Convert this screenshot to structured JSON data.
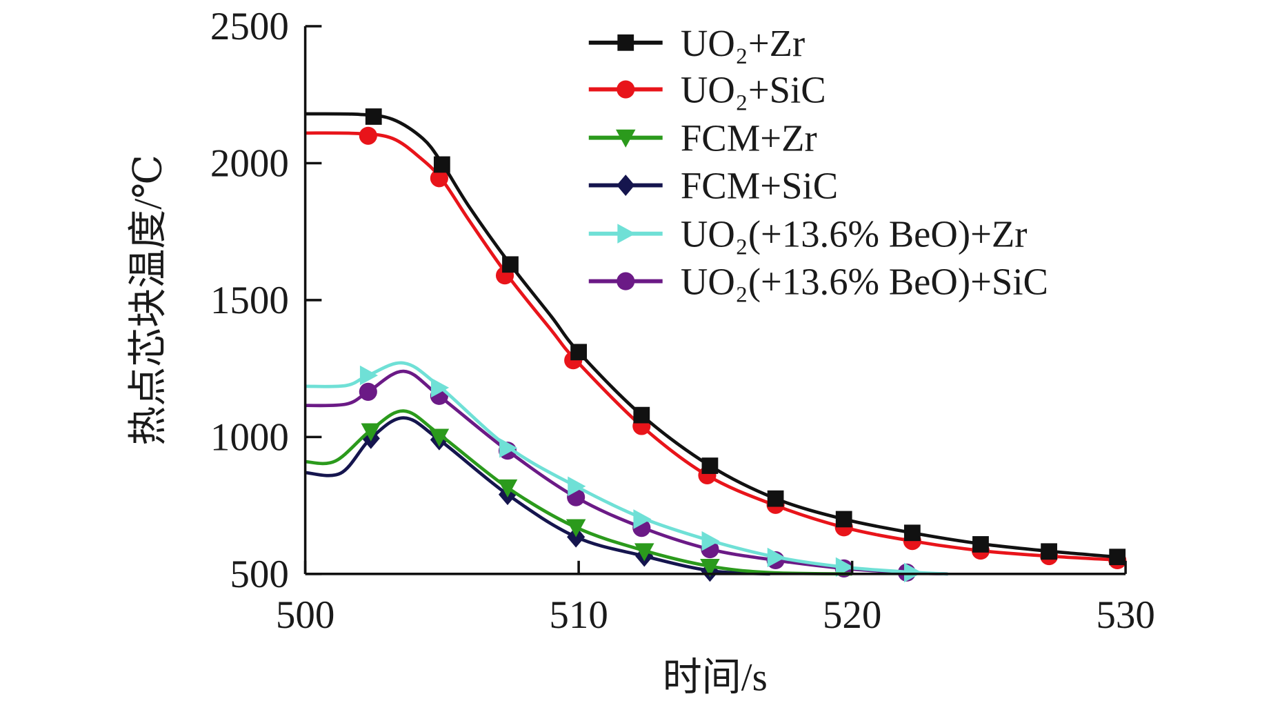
{
  "chart_data": {
    "type": "line",
    "title": "",
    "xlabel": "时间/s",
    "ylabel": "热点芯块温度/℃",
    "xlim": [
      500,
      530
    ],
    "ylim": [
      500,
      2500
    ],
    "xticks": [
      500,
      510,
      520,
      530
    ],
    "yticks": [
      500,
      1000,
      1500,
      2000,
      2500
    ],
    "grid": false,
    "legend_position": "top-right",
    "series": [
      {
        "name": "UO₂+Zr",
        "color": "#111111",
        "marker": "square",
        "points": [
          [
            500,
            2180
          ],
          [
            502,
            2178
          ],
          [
            503.2,
            2160
          ],
          [
            504.3,
            2090
          ],
          [
            505,
            2000
          ],
          [
            506,
            1840
          ],
          [
            507.5,
            1630
          ],
          [
            509,
            1440
          ],
          [
            510,
            1310
          ],
          [
            512.3,
            1080
          ],
          [
            514.8,
            895
          ],
          [
            517.2,
            775
          ],
          [
            519.7,
            700
          ],
          [
            522.2,
            650
          ],
          [
            524.7,
            610
          ],
          [
            527.2,
            583
          ],
          [
            529.9,
            560
          ]
        ],
        "markers": [
          [
            502.5,
            2170
          ],
          [
            505,
            1995
          ],
          [
            507.5,
            1630
          ],
          [
            510,
            1310
          ],
          [
            512.3,
            1080
          ],
          [
            514.8,
            895
          ],
          [
            517.2,
            775
          ],
          [
            519.7,
            700
          ],
          [
            522.2,
            650
          ],
          [
            524.7,
            608
          ],
          [
            527.2,
            582
          ],
          [
            529.7,
            562
          ]
        ]
      },
      {
        "name": "UO₂+SiC",
        "color": "#e8141a",
        "marker": "circle",
        "points": [
          [
            500,
            2110
          ],
          [
            502,
            2108
          ],
          [
            503.2,
            2090
          ],
          [
            504.2,
            2020
          ],
          [
            505,
            1940
          ],
          [
            506,
            1790
          ],
          [
            507.4,
            1590
          ],
          [
            509,
            1390
          ],
          [
            509.9,
            1280
          ],
          [
            512.3,
            1040
          ],
          [
            514.7,
            860
          ],
          [
            517.2,
            750
          ],
          [
            519.7,
            670
          ],
          [
            522.2,
            620
          ],
          [
            524.7,
            585
          ],
          [
            527.2,
            565
          ],
          [
            529.9,
            550
          ]
        ],
        "markers": [
          [
            502.3,
            2100
          ],
          [
            504.9,
            1945
          ],
          [
            507.3,
            1590
          ],
          [
            509.8,
            1280
          ],
          [
            512.3,
            1040
          ],
          [
            514.7,
            860
          ],
          [
            517.2,
            752
          ],
          [
            519.7,
            670
          ],
          [
            522.2,
            620
          ],
          [
            524.7,
            585
          ],
          [
            527.2,
            565
          ],
          [
            529.7,
            550
          ]
        ]
      },
      {
        "name": "FCM+Zr",
        "color": "#2b9a1c",
        "marker": "triangle-down",
        "points": [
          [
            500,
            910
          ],
          [
            501.1,
            912
          ],
          [
            502.4,
            1025
          ],
          [
            503.6,
            1095
          ],
          [
            504.9,
            1010
          ],
          [
            507.4,
            815
          ],
          [
            509.9,
            670
          ],
          [
            512.4,
            585
          ],
          [
            514.8,
            528
          ],
          [
            517,
            505
          ],
          [
            520,
            500
          ]
        ],
        "markers": [
          [
            502.4,
            1020
          ],
          [
            504.9,
            1000
          ],
          [
            507.4,
            815
          ],
          [
            509.9,
            670
          ],
          [
            512.4,
            582
          ],
          [
            514.8,
            525
          ]
        ]
      },
      {
        "name": "FCM+SiC",
        "color": "#15154e",
        "marker": "diamond",
        "points": [
          [
            500,
            870
          ],
          [
            501.3,
            868
          ],
          [
            502.4,
            995
          ],
          [
            503.6,
            1070
          ],
          [
            504.9,
            990
          ],
          [
            507.4,
            790
          ],
          [
            509.9,
            635
          ],
          [
            512.4,
            565
          ],
          [
            514.8,
            512
          ],
          [
            517,
            500
          ]
        ],
        "markers": [
          [
            502.4,
            995
          ],
          [
            504.9,
            990
          ],
          [
            507.4,
            790
          ],
          [
            509.9,
            635
          ],
          [
            512.4,
            565
          ],
          [
            514.8,
            510
          ]
        ]
      },
      {
        "name": "UO₂(+13.6% BeO)+Zr",
        "color": "#6fe0d6",
        "marker": "triangle-right",
        "points": [
          [
            500,
            1185
          ],
          [
            501.5,
            1188
          ],
          [
            502.3,
            1225
          ],
          [
            503.6,
            1270
          ],
          [
            504.9,
            1185
          ],
          [
            507.4,
            965
          ],
          [
            509.9,
            820
          ],
          [
            512.3,
            705
          ],
          [
            514.8,
            622
          ],
          [
            517.2,
            562
          ],
          [
            519.7,
            525
          ],
          [
            522.2,
            506
          ],
          [
            523.5,
            500
          ]
        ],
        "markers": [
          [
            502.3,
            1225
          ],
          [
            504.9,
            1180
          ],
          [
            507.4,
            960
          ],
          [
            509.9,
            820
          ],
          [
            512.3,
            700
          ],
          [
            514.8,
            620
          ],
          [
            517.2,
            560
          ],
          [
            519.7,
            525
          ],
          [
            522.2,
            505
          ]
        ]
      },
      {
        "name": "UO₂(+13.6% BeO)+SiC",
        "color": "#6b1a86",
        "marker": "circle",
        "points": [
          [
            500,
            1115
          ],
          [
            501.5,
            1120
          ],
          [
            502.3,
            1165
          ],
          [
            503.6,
            1240
          ],
          [
            504.9,
            1150
          ],
          [
            507.4,
            950
          ],
          [
            509.9,
            780
          ],
          [
            512.3,
            670
          ],
          [
            514.8,
            590
          ],
          [
            517.2,
            550
          ],
          [
            519.7,
            520
          ],
          [
            522,
            505
          ],
          [
            523.5,
            500
          ]
        ],
        "markers": [
          [
            502.3,
            1165
          ],
          [
            504.9,
            1150
          ],
          [
            507.4,
            950
          ],
          [
            509.9,
            780
          ],
          [
            512.3,
            668
          ],
          [
            514.8,
            590
          ],
          [
            517.2,
            550
          ],
          [
            519.7,
            520
          ],
          [
            522,
            505
          ]
        ]
      }
    ]
  }
}
